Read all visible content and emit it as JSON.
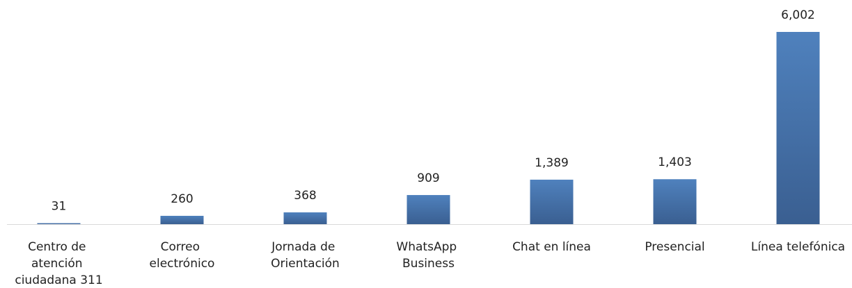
{
  "chart_data": {
    "type": "bar",
    "categories": [
      "Centro de atención ciudadana 311",
      "Correo electrónico",
      "Jornada de Orientación",
      "WhatsApp Business",
      "Chat en línea",
      "Presencial",
      "Línea telefónica"
    ],
    "values": [
      31,
      260,
      368,
      909,
      1389,
      1403,
      6002
    ],
    "value_labels": [
      "31",
      "260",
      "368",
      "909",
      "1,389",
      "1,403",
      "6,002"
    ],
    "color": "#4f81bd"
  }
}
